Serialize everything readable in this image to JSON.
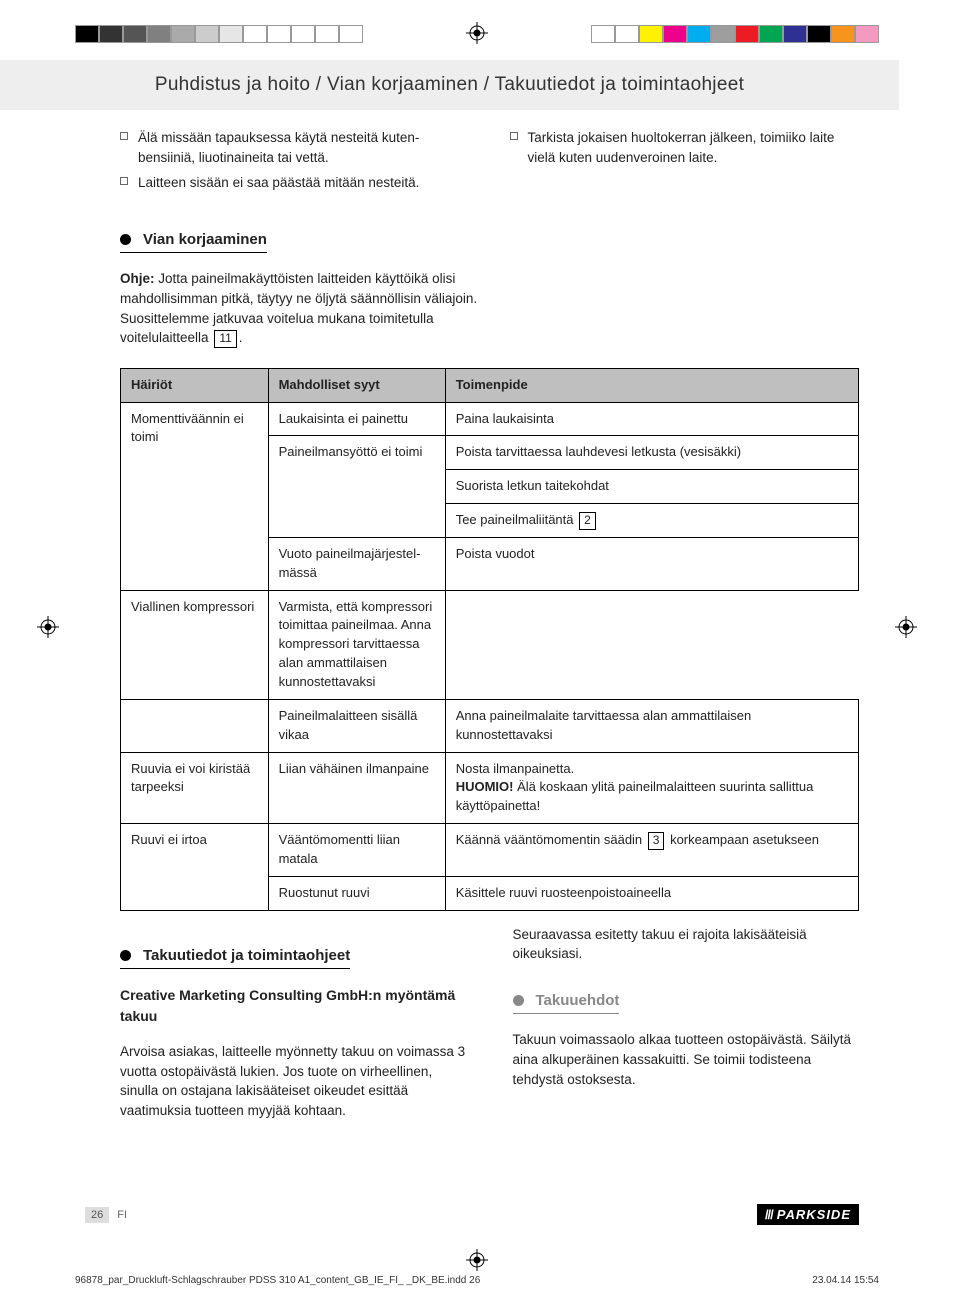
{
  "print": {
    "left_swatches": [
      "#000000",
      "#333333",
      "#555555",
      "#808080",
      "#aaaaaa",
      "#cccccc",
      "#e6e6e6",
      "#ffffff",
      "#ffffff",
      "#ffffff",
      "#ffffff",
      "#ffffff"
    ],
    "right_swatches": [
      "#ffffff",
      "#ffffff",
      "#fff200",
      "#ec008c",
      "#00aeef",
      "#9e9e9e",
      "#ed1c24",
      "#00a651",
      "#2e3192",
      "#000000",
      "#f7941d",
      "#f49ac1"
    ]
  },
  "header": {
    "title": "Puhdistus ja hoito / Vian korjaaminen / Takuutiedot ja toimintaohjeet"
  },
  "intro": {
    "left_items": [
      "Älä missään tapauksessa käytä nesteitä kuten­bensiiniä, liuotinaineita tai vettä.",
      "Laitteen sisään ei saa päästää mitään nesteitä."
    ],
    "right_items": [
      "Tarkista jokaisen huoltokerran jälkeen, toimiiko laite vielä kuten uudenveroinen laite."
    ]
  },
  "section1": {
    "title": "Vian korjaaminen",
    "note_label": "Ohje:",
    "note_text_a": " Jotta paineilmakäyttöisten laitteiden käyttöikä olisi mahdollisimman pitkä, täytyy ne öljytä säännöl­lisin väliajoin. Suosittelemme jatkuvaa voitelua mu­kana toimitetulla voitelulaitteella ",
    "note_num": "11",
    "note_text_b": "."
  },
  "table": {
    "columns": [
      "Häiriöt",
      "Mahdolliset syyt",
      "Toimenpide"
    ],
    "col_widths": [
      "20%",
      "24%",
      "56%"
    ],
    "rows": [
      {
        "c0": "Momenttiväännin ei toimi",
        "c1": "Laukaisinta ei painettu",
        "c2": "Paina laukaisinta",
        "r0": 5
      },
      {
        "c1": "Paineilmansyöttö ei toimi",
        "c2": "Poista tarvittaessa lauhdevesi letkusta (vesisäkki)",
        "r1": 3,
        "tall": true
      },
      {
        "c2": "Suorista letkun taitekohdat"
      },
      {
        "c2_pre": "Tee paineilmaliitäntä ",
        "c2_box": "2"
      },
      {
        "c1": "Vuoto paineilmajärjestel­mässä",
        "c2": "Poista vuodot"
      },
      {
        "c1": "Viallinen kompressori",
        "c2": "Varmista, että kompressori toimittaa paineilmaa. Anna kompressori tarvittaessa alan ammattilaisen kunnostettavaksi"
      },
      {
        "c0": "",
        "c1": "Paineilmalaitteen sisällä vikaa",
        "c2": "Anna paineilmalaite tarvittaessa alan ammattilaisen kunnostettavaksi"
      },
      {
        "c0": "Ruuvia ei voi kiri­stää tarpeeksi",
        "c1": "Liian vähäinen ilmanpaine",
        "c2_pre": "Nosta ilmanpainetta.\n",
        "c2_bold": "HUOMIO!",
        "c2_post": " Älä koskaan ylitä paineilmalaitteen suu­rinta sallittua käyttöpainetta!"
      },
      {
        "c0": "Ruuvi ei irtoa",
        "c1": "Vääntömomentti liian matala",
        "c2_pre": "Käännä vääntömomentin säädin ",
        "c2_box": "3",
        "c2_post": " korkeampaan asetukseen",
        "r0": 2
      },
      {
        "c1": "Ruostunut ruuvi",
        "c2": "Käsittele ruuvi ruosteenpoistoaineella"
      }
    ]
  },
  "section2": {
    "title": "Takuutiedot ja toimintaohjeet",
    "sub": "Creative Marketing Consulting GmbH:n myöntämä takuu",
    "para": "Arvoisa asiakas, laitteelle myönnetty takuu on voi­massa 3 vuotta ostopäivästä lukien. Jos tuote on virheellinen, sinulla on ostajana lakisääteiset oikeu­det esittää vaatimuksia tuotteen myyjää kohtaan."
  },
  "section2_right": {
    "para1": "Seuraavassa esitetty takuu ei rajoita lakisääteisiä oikeuksiasi.",
    "title": "Takuuehdot",
    "para2": "Takuun voimassaolo alkaa tuotteen ostopäivästä. Säilytä aina alkuperäinen kassakuitti. Se toimii todis­teena tehdystä ostoksesta."
  },
  "footer": {
    "page_number": "26",
    "lang": "FI",
    "brand": "PARKSIDE",
    "file": "96878_par_Druckluft-Schlagschrauber PDSS 310 A1_content_GB_IE_FI_      _DK_BE.indd   26",
    "timestamp": "23.04.14   15:54"
  }
}
